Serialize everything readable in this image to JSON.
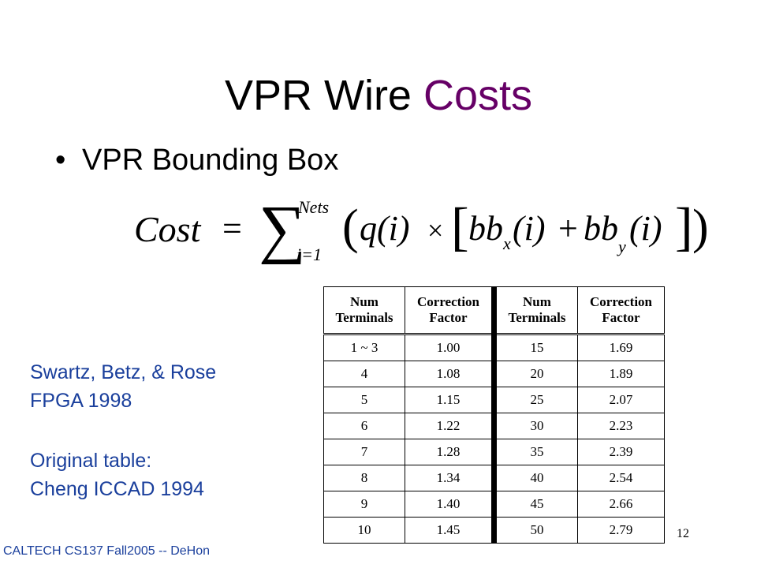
{
  "title": {
    "part1": "VPR Wire ",
    "part2": "Costs"
  },
  "bullet": {
    "marker": "•",
    "text": "VPR Bounding Box"
  },
  "formula": {
    "cost": "Cost",
    "equals": "=",
    "sum_upper": "Nets",
    "sum_lower": "i=1",
    "q": "q(i)",
    "times": "×",
    "bbx": "bb",
    "bbx_sub": "x",
    "bby_sub": "y",
    "arg": "(i)",
    "plus": "+"
  },
  "citations": [
    {
      "line1": "Swartz, Betz, & Rose",
      "line2": "FPGA 1998"
    },
    {
      "line1": "Original table:",
      "line2": "Cheng ICCAD 1994"
    }
  ],
  "table": {
    "headers": [
      [
        "Num",
        "Terminals"
      ],
      [
        "Correction",
        "Factor"
      ],
      [
        "Num",
        "Terminals"
      ],
      [
        "Correction",
        "Factor"
      ]
    ],
    "rows": [
      [
        "1 ~ 3",
        "1.00",
        "15",
        "1.69"
      ],
      [
        "4",
        "1.08",
        "20",
        "1.89"
      ],
      [
        "5",
        "1.15",
        "25",
        "2.07"
      ],
      [
        "6",
        "1.22",
        "30",
        "2.23"
      ],
      [
        "7",
        "1.28",
        "35",
        "2.39"
      ],
      [
        "8",
        "1.34",
        "40",
        "2.54"
      ],
      [
        "9",
        "1.40",
        "45",
        "2.66"
      ],
      [
        "10",
        "1.45",
        "50",
        "2.79"
      ]
    ]
  },
  "footer": "CALTECH CS137 Fall2005 -- DeHon",
  "page_number": "12"
}
